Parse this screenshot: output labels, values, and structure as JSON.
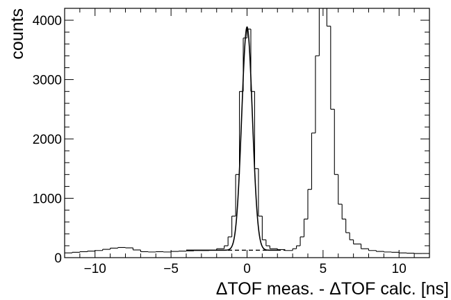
{
  "chart_data": {
    "type": "line",
    "xlabel": "ΔTOF meas. - ΔTOF calc. [ns]",
    "ylabel": "counts",
    "xlim": [
      -12,
      12
    ],
    "ylim": [
      0,
      4200
    ],
    "grid": false,
    "legend": "none",
    "x_ticks": [
      {
        "value": -10,
        "label": "−10"
      },
      {
        "value": -5,
        "label": "−5"
      },
      {
        "value": 0,
        "label": "0"
      },
      {
        "value": 5,
        "label": "5"
      },
      {
        "value": 10,
        "label": "10"
      }
    ],
    "y_ticks": [
      {
        "value": 0,
        "label": "0"
      },
      {
        "value": 1000,
        "label": "1000"
      },
      {
        "value": 2000,
        "label": "2000"
      },
      {
        "value": 3000,
        "label": "3000"
      },
      {
        "value": 4000,
        "label": "4000"
      }
    ],
    "series": [
      {
        "style": "histogram",
        "color": "#000000",
        "x": [
          -12.0,
          -11.5,
          -11.0,
          -10.5,
          -10.0,
          -9.5,
          -9.0,
          -8.5,
          -8.0,
          -7.5,
          -7.0,
          -6.5,
          -6.0,
          -5.5,
          -5.0,
          -4.5,
          -4.0,
          -3.5,
          -3.0,
          -2.5,
          -2.0,
          -1.5,
          -1.25,
          -1.0,
          -0.75,
          -0.5,
          -0.25,
          0.0,
          0.25,
          0.5,
          0.75,
          1.0,
          1.25,
          1.5,
          2.0,
          2.5,
          3.0,
          3.25,
          3.5,
          3.75,
          4.0,
          4.25,
          4.5,
          4.75,
          5.0,
          5.25,
          5.5,
          5.75,
          6.0,
          6.25,
          6.5,
          6.75,
          7.0,
          7.5,
          8.0,
          8.5,
          9.0,
          9.5,
          10.0,
          10.5,
          11.0,
          11.5
        ],
        "values": [
          80,
          90,
          100,
          110,
          120,
          140,
          160,
          170,
          165,
          130,
          100,
          95,
          100,
          95,
          105,
          110,
          115,
          120,
          120,
          125,
          150,
          200,
          350,
          700,
          1400,
          2800,
          3700,
          3850,
          2800,
          1500,
          700,
          300,
          200,
          150,
          135,
          120,
          150,
          200,
          350,
          650,
          1150,
          2100,
          3400,
          4200,
          4200,
          3900,
          2500,
          1400,
          900,
          650,
          420,
          300,
          230,
          150,
          120,
          105,
          95,
          90,
          80,
          75,
          70,
          70
        ]
      }
    ],
    "fit": {
      "style": "solid",
      "color": "#000000",
      "x_range": [
        -4,
        2
      ],
      "mean": 0,
      "sigma": 0.35,
      "amplitude": 3760,
      "baseline": 125
    },
    "background_fit": {
      "style": "dashed",
      "color": "#000000",
      "x_range": [
        -4,
        2.5
      ],
      "value": 125
    }
  }
}
